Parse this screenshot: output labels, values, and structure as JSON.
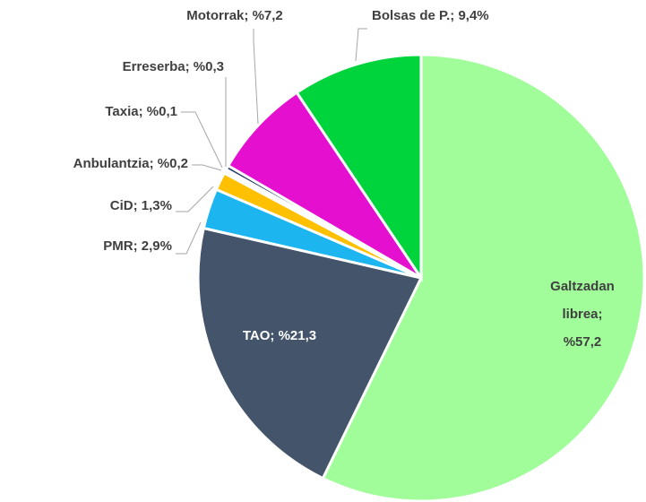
{
  "chart_data": {
    "type": "pie",
    "categories": [
      "Galtzadan librea;",
      "TAO;",
      "PMR;",
      "CiD;",
      "Anbulantzia;",
      "Taxia;",
      "Erreserba;",
      "Motorrak;",
      "Bolsas de P.;"
    ],
    "values": [
      57.2,
      21.3,
      2.9,
      1.3,
      0.2,
      0.1,
      0.3,
      7.2,
      9.4
    ],
    "value_labels": [
      "%57,2",
      "%21,3",
      "2,9%",
      "1,3%",
      "%0,2",
      "%0,1",
      "%0,3",
      "%7,2",
      "9,4%"
    ],
    "colors": [
      "#a0fd9a",
      "#44546a",
      "#1cb5f0",
      "#ffc000",
      "#5b7fc4",
      "#70ad47",
      "#203864",
      "#e50fcf",
      "#00d43c"
    ]
  }
}
